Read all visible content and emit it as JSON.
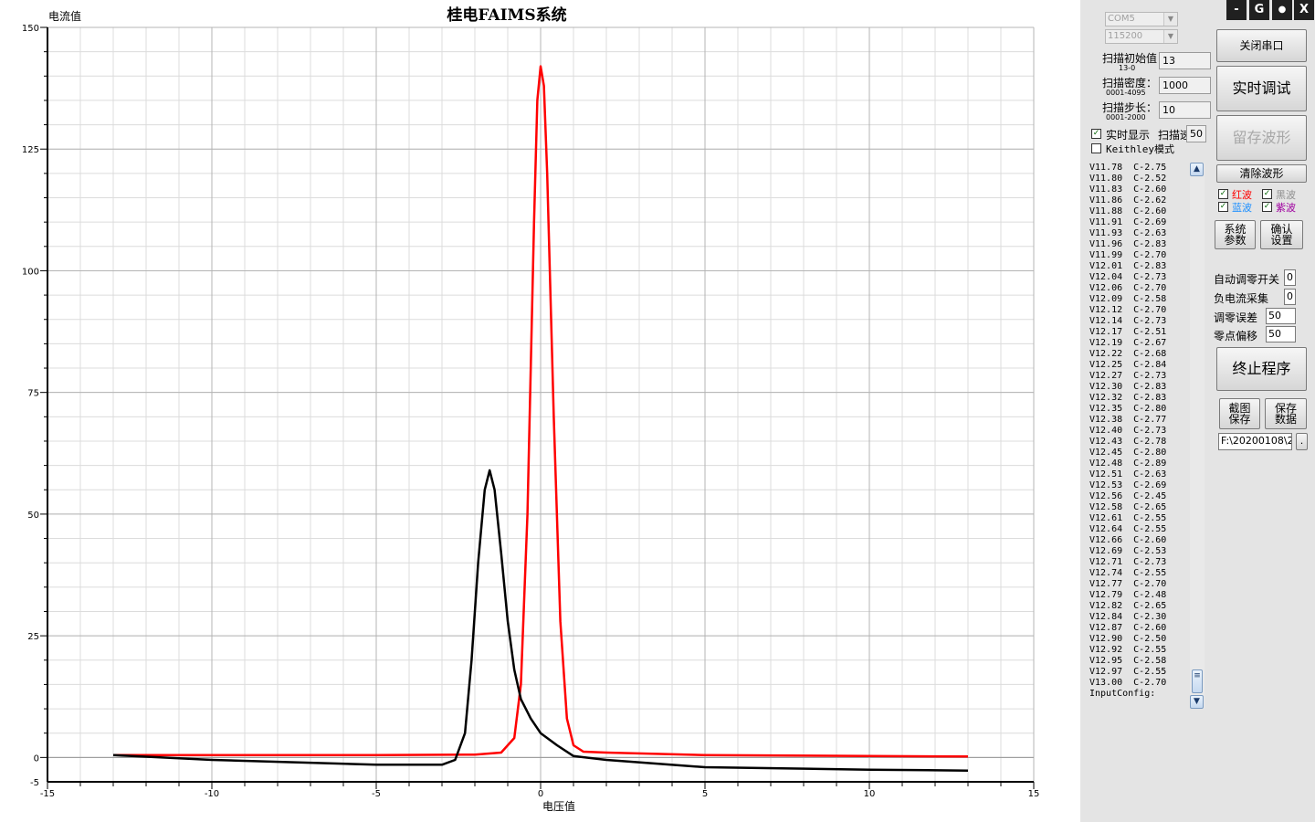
{
  "chart_data": {
    "type": "line",
    "title": "桂电FAIMS系统",
    "xlabel": "电压值",
    "ylabel": "电流值",
    "xlim": [
      -15,
      15
    ],
    "ylim": [
      -5,
      150
    ],
    "x_ticks": [
      "-15",
      "-10",
      "-5",
      "0",
      "5",
      "10",
      "15"
    ],
    "y_ticks": [
      "-5",
      "0",
      "25",
      "50",
      "75",
      "100",
      "125",
      "150"
    ],
    "grid": true,
    "series": [
      {
        "color": "#ff0000",
        "x": [
          -13,
          -10,
          -5,
          -2,
          -1.2,
          -0.8,
          -0.6,
          -0.4,
          -0.2,
          -0.1,
          0,
          0.1,
          0.2,
          0.4,
          0.6,
          0.8,
          1.0,
          1.3,
          2,
          5,
          10,
          13
        ],
        "y": [
          0.5,
          0.5,
          0.5,
          0.6,
          1,
          4,
          15,
          50,
          110,
          135,
          142,
          138,
          120,
          70,
          28,
          8,
          2.5,
          1.2,
          1,
          0.5,
          0.3,
          0.2
        ]
      },
      {
        "color": "#000000",
        "x": [
          -13,
          -10,
          -5,
          -3,
          -2.6,
          -2.3,
          -2.1,
          -1.9,
          -1.7,
          -1.55,
          -1.4,
          -1.2,
          -1.0,
          -0.8,
          -0.6,
          -0.3,
          0,
          0.5,
          1,
          2,
          5,
          10,
          13
        ],
        "y": [
          0.5,
          -0.5,
          -1.5,
          -1.5,
          -0.5,
          5,
          20,
          40,
          55,
          59,
          55,
          42,
          28,
          18,
          12,
          8,
          5,
          2.5,
          0.3,
          -0.5,
          -2,
          -2.5,
          -2.7
        ]
      }
    ]
  },
  "header": {
    "com_port": "COM5",
    "baud_rate": "115200"
  },
  "scan": {
    "start_label": "扫描初始值",
    "start_sub": "13-0",
    "start_value": "13",
    "density_label": "扫描密度：",
    "density_sub": "0001-4095",
    "density_value": "1000",
    "step_label": "扫描步长：",
    "step_sub": "0001-2000",
    "step_value": "10"
  },
  "options": {
    "realtime_label": "实时显示",
    "realtime_checked": true,
    "speed_label": "扫描速",
    "speed_value": "50",
    "keithley_label": "Keithley模式",
    "keithley_checked": false
  },
  "log_lines": [
    "V11.78  C-2.75",
    "V11.80  C-2.52",
    "V11.83  C-2.60",
    "V11.86  C-2.62",
    "V11.88  C-2.60",
    "V11.91  C-2.69",
    "V11.93  C-2.63",
    "V11.96  C-2.83",
    "V11.99  C-2.70",
    "V12.01  C-2.83",
    "V12.04  C-2.73",
    "V12.06  C-2.70",
    "V12.09  C-2.58",
    "V12.12  C-2.70",
    "V12.14  C-2.73",
    "V12.17  C-2.51",
    "V12.19  C-2.67",
    "V12.22  C-2.68",
    "V12.25  C-2.84",
    "V12.27  C-2.73",
    "V12.30  C-2.83",
    "V12.32  C-2.83",
    "V12.35  C-2.80",
    "V12.38  C-2.77",
    "V12.40  C-2.73",
    "V12.43  C-2.78",
    "V12.45  C-2.80",
    "V12.48  C-2.89",
    "V12.51  C-2.63",
    "V12.53  C-2.69",
    "V12.56  C-2.45",
    "V12.58  C-2.65",
    "V12.61  C-2.55",
    "V12.64  C-2.55",
    "V12.66  C-2.60",
    "V12.69  C-2.53",
    "V12.71  C-2.73",
    "V12.74  C-2.55",
    "V12.77  C-2.70",
    "V12.79  C-2.48",
    "V12.82  C-2.65",
    "V12.84  C-2.30",
    "V12.87  C-2.60",
    "V12.90  C-2.50",
    "V12.92  C-2.55",
    "V12.95  C-2.58",
    "V12.97  C-2.55",
    "V13.00  C-2.70",
    "InputConfig:"
  ],
  "buttons": {
    "close_serial": "关闭串口",
    "realtime_debug": "实时调试",
    "keep_waveform": "留存波形",
    "clear_waveform": "清除波形",
    "sys_params_1": "系统",
    "sys_params_2": "参数",
    "confirm_1": "确认",
    "confirm_2": "设置",
    "terminate": "终止程序",
    "screenshot_1": "截图",
    "screenshot_2": "保存",
    "savedata_1": "保存",
    "savedata_2": "数据",
    "browse": "."
  },
  "waves": [
    {
      "label": "红波",
      "color": "#ff0000",
      "checked": true
    },
    {
      "label": "黑波",
      "color": "#909090",
      "checked": true
    },
    {
      "label": "蓝波",
      "color": "#1e90ff",
      "checked": true
    },
    {
      "label": "紫波",
      "color": "#a000a0",
      "checked": true
    }
  ],
  "settings": {
    "auto_zero_label": "自动调零开关",
    "auto_zero_value": "0",
    "neg_current_label": "负电流采集",
    "neg_current_value": "0",
    "zero_err_label": "调零误差",
    "zero_err_value": "50",
    "zero_offset_label": "零点偏移",
    "zero_offset_value": "50"
  },
  "save_path": "F:\\20200108\\2",
  "titlebar": {
    "minimize": "-",
    "gear": "G",
    "dot": "●",
    "close": "X"
  }
}
